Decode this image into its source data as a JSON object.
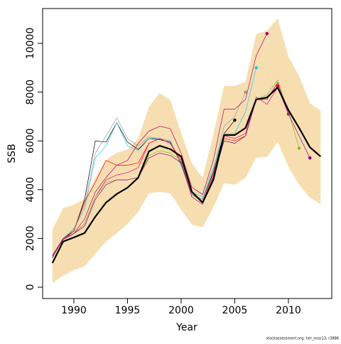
{
  "chart_data": {
    "type": "line",
    "x_label": "Year",
    "y_label": "SSB",
    "footnote": "stockassessment.org, her_noss13, r3886",
    "x": [
      1988,
      1989,
      1990,
      1991,
      1992,
      1993,
      1994,
      1995,
      1996,
      1997,
      1998,
      1999,
      2000,
      2001,
      2002,
      2003,
      2004,
      2005,
      2006,
      2007,
      2008,
      2009,
      2010,
      2011,
      2012,
      2013
    ],
    "xlim": [
      1987.09,
      2014.04
    ],
    "ylim": [
      -466,
      11429
    ],
    "xticks": [
      1990,
      1995,
      2000,
      2005,
      2010
    ],
    "yticks": [
      0,
      2000,
      4000,
      6000,
      8000,
      10000
    ],
    "band": {
      "color": "#f6deb0",
      "upper": [
        2360,
        3240,
        3380,
        3615,
        4490,
        5220,
        5510,
        5650,
        6090,
        7400,
        7960,
        7670,
        6330,
        5070,
        4490,
        6240,
        8250,
        8250,
        8430,
        10380,
        10520,
        11020,
        9450,
        8660,
        7550,
        7230
      ],
      "lower": [
        170,
        470,
        700,
        850,
        1370,
        1870,
        2220,
        2590,
        3090,
        3850,
        3910,
        3850,
        3180,
        2570,
        2450,
        3270,
        4260,
        4200,
        4490,
        5310,
        5340,
        5950,
        4930,
        4200,
        3670,
        3410
      ]
    },
    "series": [
      {
        "color": "#000000",
        "line_width": 0.7,
        "end_marker": true,
        "values": [
          1200,
          2000,
          2300,
          3600,
          6000,
          5950,
          6750,
          5950,
          5650,
          6100,
          6050,
          5950,
          5050,
          3800,
          3600,
          4700,
          6300,
          6850,
          null,
          null,
          null,
          null,
          null,
          null,
          null,
          null
        ]
      },
      {
        "color": "#9a9a9a",
        "line_width": 0.7,
        "end_marker": true,
        "values": [
          1200,
          2000,
          2350,
          3400,
          5500,
          6200,
          6950,
          6100,
          5800,
          6150,
          6100,
          6000,
          5000,
          3800,
          3600,
          4800,
          6600,
          7000,
          8000,
          null,
          null,
          null,
          null,
          null,
          null,
          null
        ]
      },
      {
        "color": "#28c5e5",
        "line_width": 0.7,
        "end_marker": true,
        "values": [
          1250,
          2000,
          2400,
          3200,
          5300,
          5800,
          6750,
          5800,
          5600,
          6100,
          6100,
          6000,
          5000,
          3900,
          3700,
          4900,
          6300,
          6300,
          7200,
          9000,
          null,
          null,
          null,
          null,
          null,
          null
        ]
      },
      {
        "color": "#b5006f",
        "line_width": 0.7,
        "end_marker": true,
        "values": [
          1300,
          2000,
          2200,
          2800,
          3900,
          4500,
          5000,
          5200,
          5900,
          6400,
          6600,
          6500,
          5500,
          4100,
          3800,
          5200,
          7300,
          7300,
          7700,
          9500,
          10400,
          null,
          null,
          null,
          null,
          null
        ]
      },
      {
        "color": "#ff0000",
        "line_width": 0.7,
        "end_marker": true,
        "values": [
          1250,
          1950,
          2300,
          3500,
          4300,
          5200,
          5000,
          5000,
          5100,
          5900,
          6100,
          5900,
          5100,
          3800,
          3500,
          4600,
          6100,
          6000,
          6200,
          7700,
          7800,
          8250,
          null,
          null,
          null,
          null
        ]
      },
      {
        "color": "#e6007e",
        "line_width": 0.7,
        "end_marker": true,
        "values": [
          1250,
          1950,
          2200,
          2600,
          3700,
          4400,
          4600,
          4700,
          4900,
          5900,
          6100,
          5900,
          5200,
          3800,
          3500,
          4600,
          6200,
          6100,
          6300,
          7800,
          7500,
          8200,
          7100,
          null,
          null,
          null
        ]
      },
      {
        "color": "#7fc31c",
        "line_width": 0.7,
        "end_marker": true,
        "values": [
          1250,
          1950,
          2200,
          2600,
          3700,
          4300,
          4400,
          4400,
          4500,
          5400,
          5600,
          5500,
          5200,
          3800,
          3500,
          4500,
          6000,
          5900,
          6200,
          7700,
          7900,
          8500,
          7200,
          5700,
          null,
          null
        ]
      },
      {
        "color": "#8b008b",
        "line_width": 0.7,
        "end_marker": true,
        "values": [
          1250,
          1950,
          2200,
          2500,
          3600,
          4200,
          4400,
          4400,
          4500,
          5300,
          5500,
          5400,
          5100,
          3700,
          3400,
          4500,
          6000,
          5900,
          6200,
          7700,
          7700,
          8400,
          7100,
          6200,
          5300,
          null
        ]
      },
      {
        "color": "#000000",
        "line_width": 2.2,
        "end_marker": false,
        "values": [
          990,
          1870,
          2040,
          2220,
          2890,
          3470,
          3820,
          4080,
          4490,
          5570,
          5800,
          5660,
          5360,
          3910,
          3470,
          4400,
          6240,
          6240,
          6530,
          7700,
          7780,
          8190,
          7260,
          6530,
          5740,
          5360
        ]
      }
    ]
  }
}
